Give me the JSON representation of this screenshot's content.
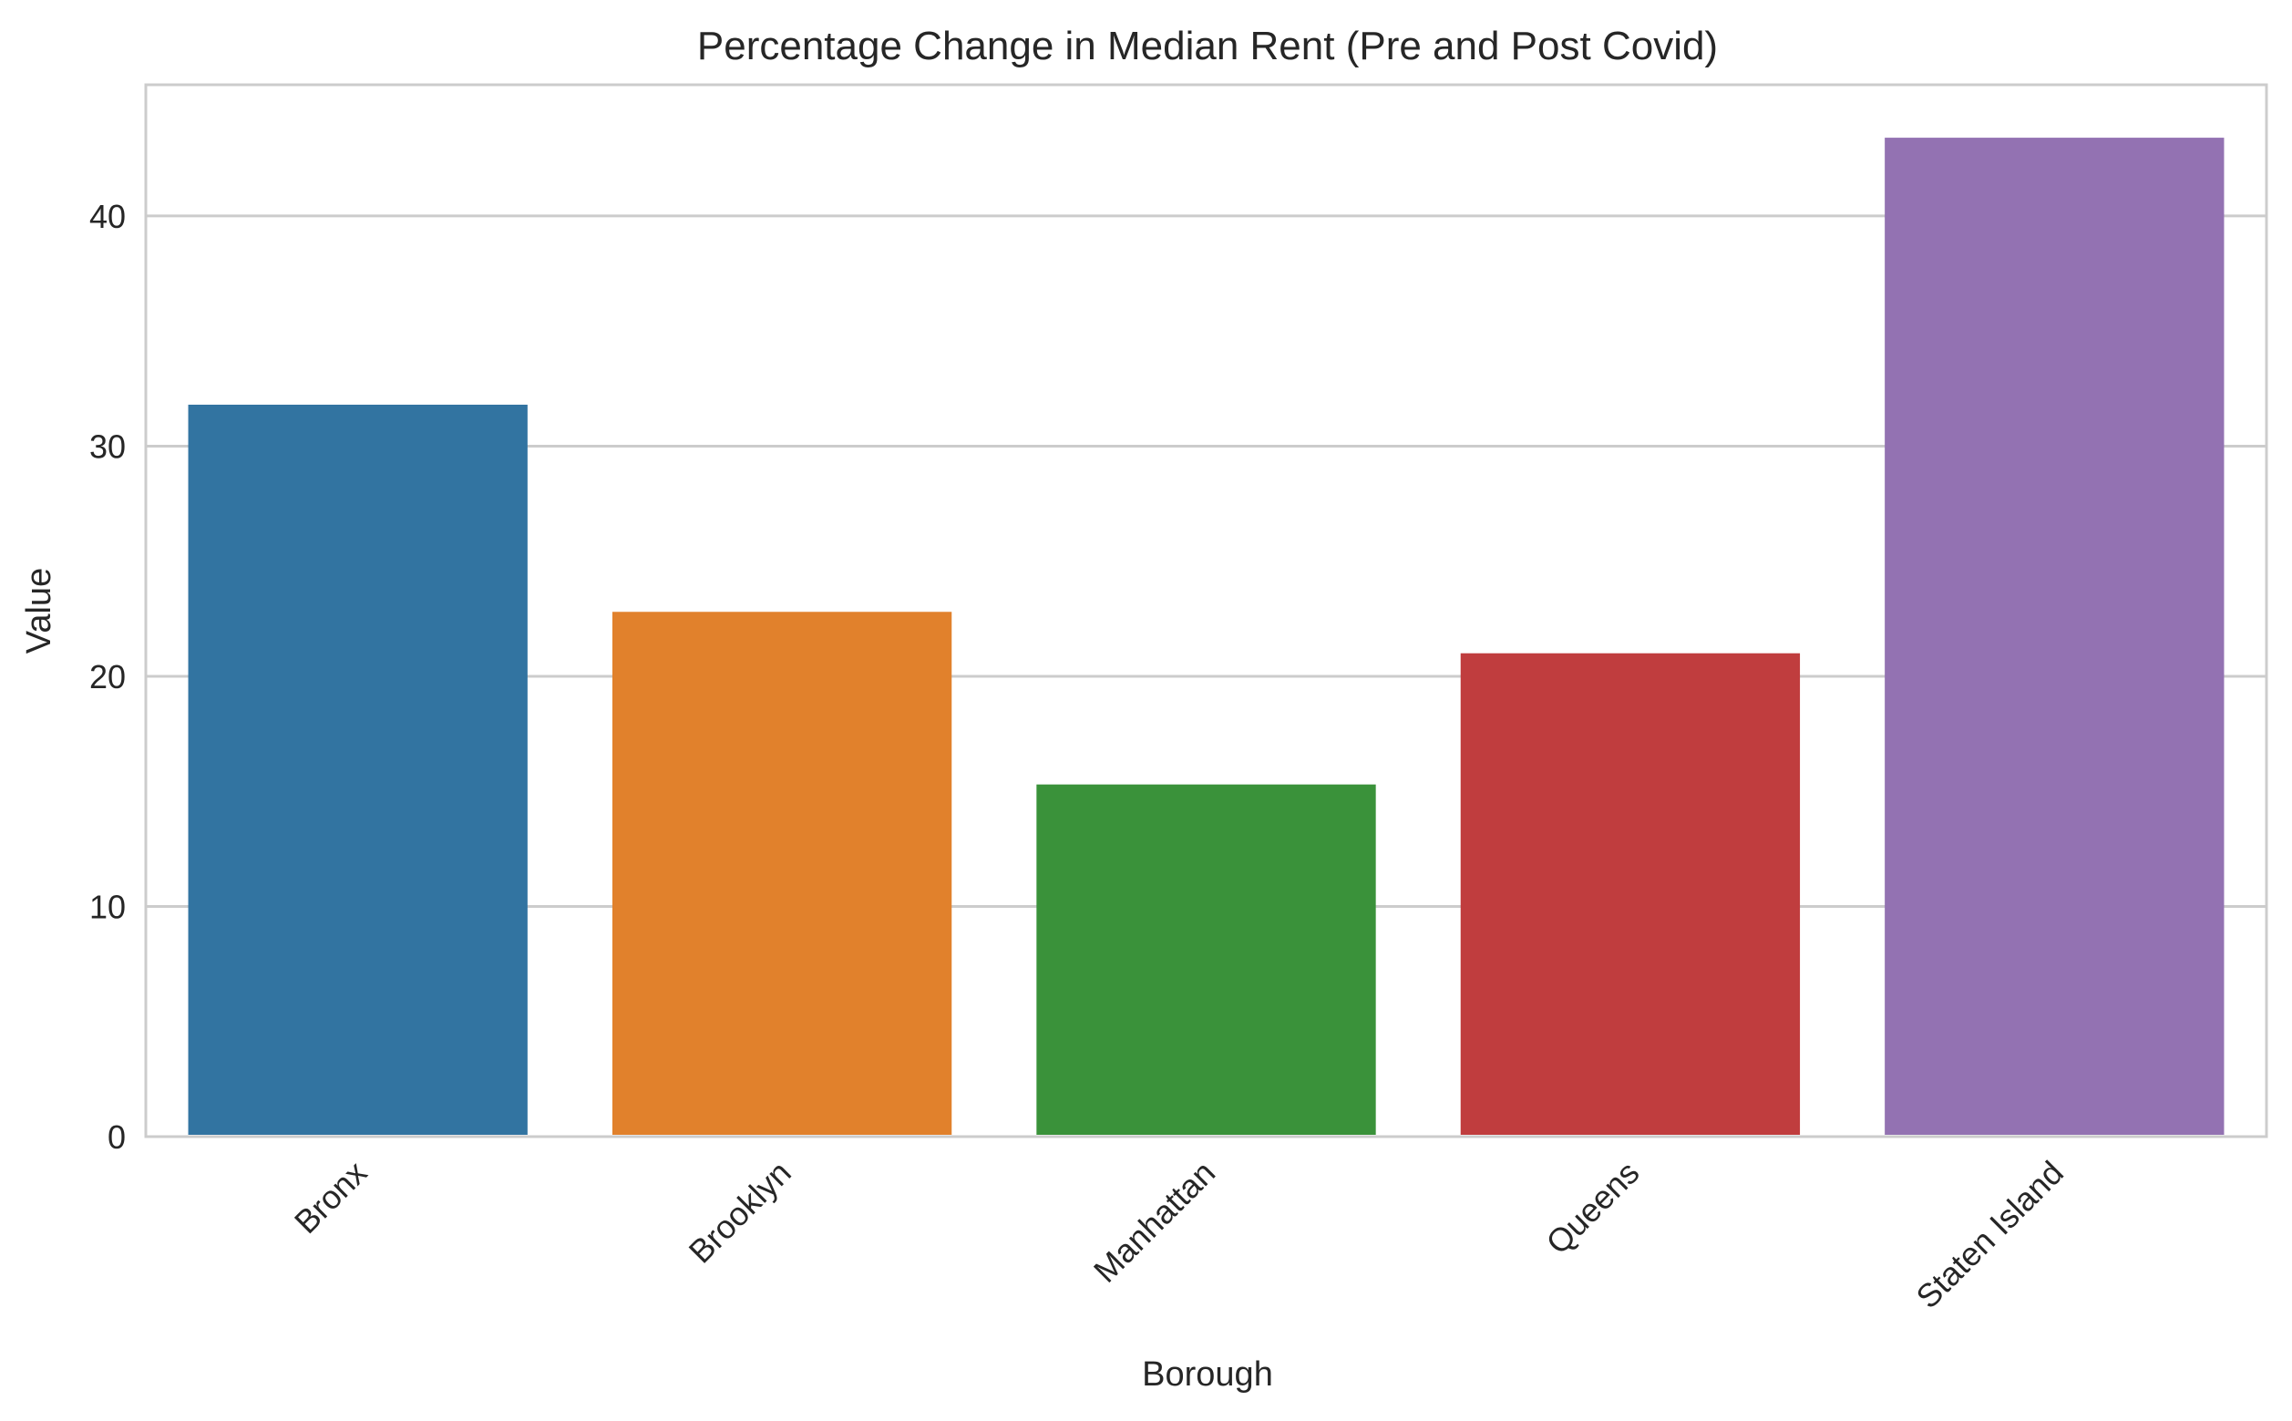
{
  "chart_data": {
    "type": "bar",
    "title": "Percentage Change in Median Rent (Pre and Post Covid)",
    "xlabel": "Borough",
    "ylabel": "Value",
    "categories": [
      "Bronx",
      "Brooklyn",
      "Manhattan",
      "Queens",
      "Staten Island"
    ],
    "values": [
      31.8,
      22.8,
      15.3,
      21.0,
      43.4
    ],
    "colors": [
      "#3274a1",
      "#e1812c",
      "#3a923a",
      "#c03d3e",
      "#9372b2"
    ],
    "ylim": [
      0,
      45.7
    ],
    "yticks": [
      0,
      10,
      20,
      30,
      40
    ],
    "grid": "horizontal",
    "xtick_rotation": "45 degrees",
    "legend": "none"
  }
}
